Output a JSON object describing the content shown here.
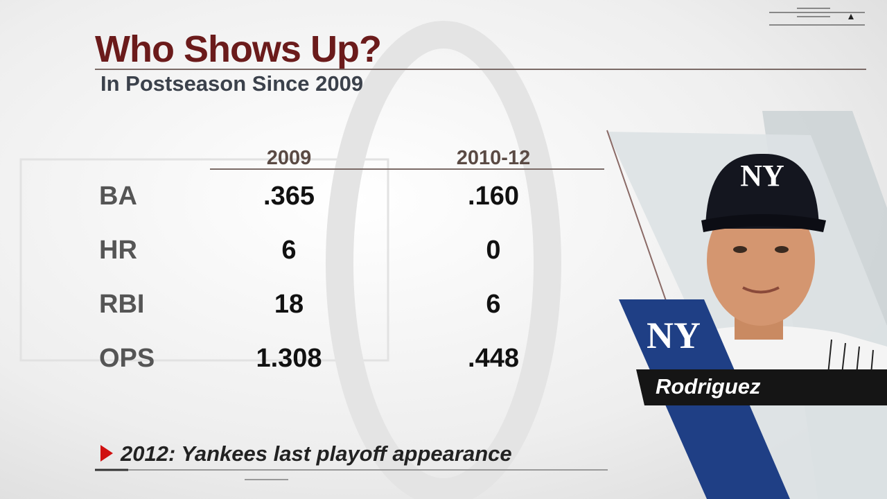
{
  "header": {
    "title": "Who Shows Up?",
    "subtitle": "In Postseason Since 2009"
  },
  "table": {
    "columns": [
      "2009",
      "2010-12"
    ],
    "rows": [
      [
        "BA",
        ".365",
        ".160"
      ],
      [
        "HR",
        "6",
        "0"
      ],
      [
        "RBI",
        "18",
        "6"
      ],
      [
        "OPS",
        "1.308",
        ".448"
      ]
    ]
  },
  "note": "2012: Yankees last playoff appearance",
  "player": {
    "name": "Rodriguez",
    "team_logo": "NY"
  }
}
